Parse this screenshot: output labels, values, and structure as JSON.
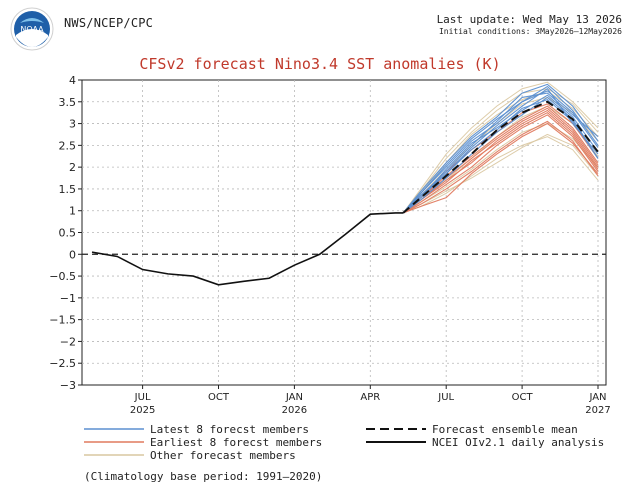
{
  "header": {
    "logo_text": "NOAA",
    "agency": "NWS/NCEP/CPC",
    "last_update": "Last update: Wed May 13 2026",
    "initial_conditions": "Initial conditions: 3May2026–12May2026"
  },
  "footer": "(Climatology base period: 1991—2020)",
  "colors": {
    "latest": "#5b8fd0",
    "earliest": "#e07a5f",
    "other": "#d9c7a0",
    "mean": "#111111",
    "analysis": "#111111",
    "title": "#c0392b"
  },
  "chart_data": {
    "type": "line",
    "title": "CFSv2 forecast Nino3.4 SST anomalies (K)",
    "ylim": [
      -3,
      4
    ],
    "xlim": [
      0,
      20
    ],
    "grid": true,
    "yticks": [
      "4",
      "3.5",
      "3",
      "2.5",
      "2",
      "1.5",
      "1",
      "0.5",
      "0",
      "−0.5",
      "−1",
      "−1.5",
      "−2",
      "−2.5",
      "−3"
    ],
    "xticks": [
      {
        "x": 2,
        "label": "JUL",
        "year": "2025"
      },
      {
        "x": 5,
        "label": "OCT",
        "year": ""
      },
      {
        "x": 8,
        "label": "JAN",
        "year": "2026"
      },
      {
        "x": 11,
        "label": "APR",
        "year": ""
      },
      {
        "x": 14,
        "label": "JUL",
        "year": ""
      },
      {
        "x": 17,
        "label": "OCT",
        "year": ""
      },
      {
        "x": 20,
        "label": "JAN",
        "year": "2027"
      }
    ],
    "analysis": {
      "name": "NCEI OIv2.1 daily analysis",
      "x": [
        0,
        1,
        2,
        3,
        4,
        5,
        6,
        7,
        8,
        9,
        10,
        11,
        12,
        12.3
      ],
      "y": [
        0.05,
        -0.05,
        -0.35,
        -0.45,
        -0.5,
        -0.7,
        -0.62,
        -0.55,
        -0.25,
        0.0,
        0.45,
        0.92,
        0.95,
        0.95
      ]
    },
    "mean": {
      "name": "Forecast ensemble mean",
      "x": [
        12.3,
        13,
        14,
        15,
        16,
        17,
        18,
        19,
        20
      ],
      "y": [
        0.95,
        1.3,
        1.8,
        2.3,
        2.85,
        3.25,
        3.5,
        3.1,
        2.35
      ]
    },
    "series": [
      {
        "name": "Latest 8 forecst members",
        "group": "latest",
        "y": [
          0.95,
          1.4,
          2.0,
          2.6,
          3.0,
          3.5,
          3.85,
          3.3,
          2.5
        ]
      },
      {
        "name": "",
        "group": "latest",
        "y": [
          0.95,
          1.35,
          1.9,
          2.5,
          3.05,
          3.6,
          3.7,
          3.2,
          2.7
        ]
      },
      {
        "name": "",
        "group": "latest",
        "y": [
          0.95,
          1.3,
          1.85,
          2.45,
          2.95,
          3.4,
          3.8,
          3.0,
          2.3
        ]
      },
      {
        "name": "",
        "group": "latest",
        "y": [
          0.95,
          1.45,
          2.1,
          2.7,
          3.15,
          3.7,
          3.9,
          3.4,
          2.6
        ]
      },
      {
        "name": "",
        "group": "latest",
        "y": [
          0.95,
          1.25,
          1.75,
          2.3,
          2.8,
          3.2,
          3.6,
          3.1,
          2.2
        ]
      },
      {
        "name": "",
        "group": "latest",
        "y": [
          0.95,
          1.4,
          2.05,
          2.65,
          3.1,
          3.5,
          3.75,
          3.25,
          2.45
        ]
      },
      {
        "name": "",
        "group": "latest",
        "y": [
          0.95,
          1.3,
          1.95,
          2.55,
          2.9,
          3.3,
          3.65,
          3.15,
          2.35
        ]
      },
      {
        "name": "",
        "group": "latest",
        "y": [
          0.95,
          1.35,
          1.85,
          2.4,
          2.85,
          3.35,
          3.55,
          3.05,
          2.2
        ]
      },
      {
        "name": "Earliest 8 forecst members",
        "group": "earliest",
        "y": [
          0.95,
          1.25,
          1.7,
          2.1,
          2.6,
          3.0,
          3.3,
          2.8,
          2.0
        ]
      },
      {
        "name": "",
        "group": "earliest",
        "y": [
          0.95,
          1.3,
          1.8,
          2.25,
          2.7,
          3.1,
          3.4,
          2.9,
          2.1
        ]
      },
      {
        "name": "",
        "group": "earliest",
        "y": [
          0.95,
          1.2,
          1.6,
          2.0,
          2.5,
          2.9,
          3.2,
          2.7,
          1.9
        ]
      },
      {
        "name": "",
        "group": "earliest",
        "y": [
          0.95,
          1.35,
          1.9,
          2.4,
          2.8,
          3.25,
          3.45,
          3.0,
          2.2
        ]
      },
      {
        "name": "",
        "group": "earliest",
        "y": [
          0.95,
          1.15,
          1.5,
          1.9,
          2.35,
          2.75,
          3.05,
          2.6,
          1.8
        ]
      },
      {
        "name": "",
        "group": "earliest",
        "y": [
          0.95,
          1.3,
          1.75,
          2.2,
          2.65,
          3.05,
          3.35,
          2.85,
          2.05
        ]
      },
      {
        "name": "",
        "group": "earliest",
        "y": [
          0.95,
          1.25,
          1.65,
          2.15,
          2.55,
          2.95,
          3.25,
          2.75,
          1.95
        ]
      },
      {
        "name": "",
        "group": "earliest",
        "y": [
          0.95,
          1.1,
          1.3,
          1.85,
          2.3,
          2.7,
          3.0,
          2.55,
          1.85
        ]
      },
      {
        "name": "Other forecast members",
        "group": "other",
        "y": [
          0.95,
          1.5,
          2.3,
          2.9,
          3.4,
          3.8,
          3.95,
          3.5,
          2.9
        ]
      },
      {
        "name": "",
        "group": "other",
        "y": [
          0.95,
          1.1,
          1.4,
          1.8,
          2.2,
          2.5,
          2.7,
          2.4,
          1.7
        ]
      },
      {
        "name": "",
        "group": "other",
        "y": [
          0.95,
          1.45,
          2.2,
          2.8,
          3.3,
          3.7,
          3.8,
          3.45,
          2.8
        ]
      },
      {
        "name": "",
        "group": "other",
        "y": [
          0.95,
          1.2,
          1.55,
          1.95,
          2.4,
          2.8,
          3.0,
          2.65,
          2.0
        ]
      },
      {
        "name": "",
        "group": "other",
        "y": [
          0.95,
          1.35,
          1.95,
          2.5,
          3.0,
          3.45,
          3.6,
          3.25,
          2.6
        ]
      },
      {
        "name": "",
        "group": "other",
        "y": [
          0.95,
          1.15,
          1.45,
          1.75,
          2.1,
          2.45,
          2.75,
          2.5,
          1.8
        ]
      },
      {
        "name": "",
        "group": "other",
        "y": [
          0.95,
          1.4,
          2.1,
          2.75,
          3.2,
          3.55,
          3.75,
          3.35,
          2.7
        ]
      },
      {
        "name": "",
        "group": "other",
        "y": [
          0.95,
          1.25,
          1.7,
          2.2,
          2.7,
          3.15,
          3.4,
          3.0,
          2.25
        ]
      }
    ],
    "legend": [
      {
        "key": "latest",
        "label": "Latest 8 forecst members",
        "style": "solid"
      },
      {
        "key": "earliest",
        "label": "Earliest 8 forecst members",
        "style": "solid"
      },
      {
        "key": "other",
        "label": "Other forecast members",
        "style": "solid"
      },
      {
        "key": "mean",
        "label": "Forecast ensemble mean",
        "style": "dashed"
      },
      {
        "key": "analysis",
        "label": "NCEI OIv2.1 daily analysis",
        "style": "solid"
      }
    ]
  }
}
